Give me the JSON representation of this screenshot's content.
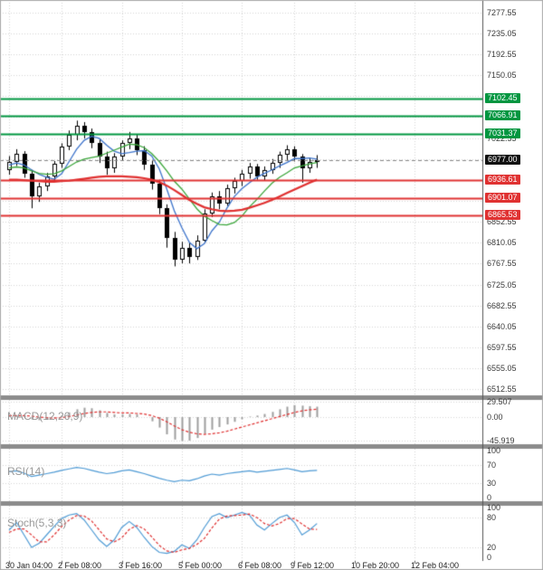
{
  "window": {
    "type": "trading-terminal-chart",
    "timeframe": "H4"
  },
  "colors": {
    "background": "#ffffff",
    "grid": "#d6d6d6",
    "separator": "#8c8c8c",
    "axis_text": "#3a3a3a",
    "candle_border": "#000000",
    "candle_up": "#ffffff",
    "candle_down": "#000000",
    "ma_fast": "#3d74cc",
    "ma_medium": "#3aa63a",
    "ma_slow": "#e03030",
    "resistance": "#009640",
    "support": "#e03232",
    "current_price_bg": "#101010",
    "macd_histogram": "#9e9e9e",
    "macd_signal": "#e03030",
    "rsi_line": "#4f9bd5",
    "stoch_k": "#4f9bd5",
    "stoch_d": "#e03030"
  },
  "time_axis": {
    "labels": [
      {
        "i": 0,
        "label": "30 Jan 04:00"
      },
      {
        "i": 7,
        "label": "2 Feb 08:00"
      },
      {
        "i": 15,
        "label": "3 Feb 16:00"
      },
      {
        "i": 23,
        "label": "5 Feb 00:00"
      },
      {
        "i": 31,
        "label": "6 Feb 08:00"
      },
      {
        "i": 38,
        "label": "9 Feb 12:00"
      },
      {
        "i": 46,
        "label": "10 Feb 20:00"
      },
      {
        "i": 54,
        "label": "12 Feb 04:00"
      }
    ]
  },
  "chart_data": [
    {
      "type": "candlestick",
      "name": "price-panel",
      "ylim": [
        6500,
        7303
      ],
      "grid_step": 42.5,
      "grid_base": 6512.55,
      "y_ticks": [
        7277.55,
        7235.05,
        7192.55,
        7150.05,
        7022.55,
        6852.55,
        6810.05,
        6767.55,
        6725.05,
        6682.55,
        6640.05,
        6597.55,
        6555.05,
        6512.55
      ],
      "levels": {
        "resistance": [
          7102.45,
          7066.91,
          7031.37
        ],
        "support": [
          6936.61,
          6901.07,
          6865.53
        ],
        "current_price": 6977.0
      },
      "ohlc": [
        [
          6958,
          6986,
          6948,
          6975
        ],
        [
          6975,
          7000,
          6966,
          6990
        ],
        [
          6990,
          6996,
          6942,
          6950
        ],
        [
          6950,
          6958,
          6880,
          6905
        ],
        [
          6905,
          6932,
          6893,
          6925
        ],
        [
          6925,
          6952,
          6915,
          6945
        ],
        [
          6945,
          6976,
          6936,
          6970
        ],
        [
          6970,
          7012,
          6962,
          7005
        ],
        [
          7005,
          7038,
          6998,
          7030
        ],
        [
          7030,
          7058,
          7018,
          7048
        ],
        [
          7048,
          7055,
          7022,
          7035
        ],
        [
          7035,
          7042,
          7002,
          7012
        ],
        [
          7012,
          7020,
          6972,
          6985
        ],
        [
          6985,
          6995,
          6948,
          6962
        ],
        [
          6962,
          6992,
          6952,
          6985
        ],
        [
          6985,
          7018,
          6976,
          7012
        ],
        [
          7012,
          7035,
          7000,
          7022
        ],
        [
          7022,
          7030,
          6988,
          6998
        ],
        [
          6998,
          7006,
          6958,
          6968
        ],
        [
          6968,
          6978,
          6918,
          6930
        ],
        [
          6930,
          6938,
          6868,
          6880
        ],
        [
          6880,
          6888,
          6800,
          6820
        ],
        [
          6820,
          6832,
          6762,
          6775
        ],
        [
          6775,
          6812,
          6768,
          6800
        ],
        [
          6800,
          6810,
          6768,
          6782
        ],
        [
          6782,
          6825,
          6775,
          6815
        ],
        [
          6815,
          6878,
          6810,
          6870
        ],
        [
          6870,
          6912,
          6862,
          6905
        ],
        [
          6905,
          6915,
          6878,
          6890
        ],
        [
          6890,
          6928,
          6885,
          6920
        ],
        [
          6920,
          6942,
          6910,
          6935
        ],
        [
          6935,
          6958,
          6925,
          6950
        ],
        [
          6950,
          6972,
          6940,
          6965
        ],
        [
          6965,
          6970,
          6938,
          6945
        ],
        [
          6945,
          6965,
          6936,
          6958
        ],
        [
          6958,
          6980,
          6950,
          6972
        ],
        [
          6972,
          6995,
          6962,
          6988
        ],
        [
          6988,
          7008,
          6978,
          7000
        ],
        [
          7000,
          7006,
          6975,
          6985
        ],
        [
          6985,
          6990,
          6932,
          6962
        ],
        [
          6962,
          6982,
          6952,
          6975
        ],
        [
          6975,
          6988,
          6962,
          6977
        ]
      ],
      "overlays": [
        {
          "name": "ma-fast",
          "values": [
            6968,
            6972,
            6968,
            6958,
            6949,
            6943,
            6939,
            6950,
            6975,
            7000,
            7018,
            7026,
            7022,
            7008,
            6996,
            6991,
            6993,
            6996,
            6997,
            6986,
            6960,
            6919,
            6875,
            6841,
            6811,
            6798,
            6808,
            6834,
            6852,
            6880,
            6904,
            6920,
            6932,
            6943,
            6951,
            6958,
            6966,
            6973,
            6981,
            6981,
            6982,
            6980
          ]
        },
        {
          "name": "ma-medium",
          "values": [
            6962,
            6964,
            6962,
            6956,
            6951,
            6949,
            6950,
            6956,
            6965,
            6974,
            6980,
            6983,
            6986,
            6992,
            6998,
            7004,
            7010,
            7009,
            7003,
            6991,
            6975,
            6956,
            6935,
            6919,
            6899,
            6879,
            6864,
            6855,
            6847,
            6846,
            6851,
            6864,
            6883,
            6898,
            6915,
            6931,
            6943,
            6952,
            6962,
            6966,
            6970,
            6973
          ]
        },
        {
          "name": "ma-slow",
          "values": [
            6938,
            6938,
            6937,
            6936,
            6935,
            6934,
            6934,
            6935,
            6936,
            6938,
            6940,
            6942,
            6944,
            6945,
            6945,
            6945,
            6944,
            6943,
            6941,
            6938,
            6933,
            6926,
            6917,
            6907,
            6897,
            6889,
            6882,
            6878,
            6875,
            6874,
            6875,
            6877,
            6881,
            6886,
            6891,
            6897,
            6904,
            6911,
            6918,
            6925,
            6932,
            6938
          ]
        }
      ]
    },
    {
      "type": "macd",
      "title": "MACD(12,26,9)",
      "ylim": [
        -52,
        33
      ],
      "y_ticks": [
        29.507,
        0,
        -45.919
      ],
      "y_tick_labels": [
        "29.507",
        "0.00",
        "-45.919"
      ],
      "histogram": [
        2,
        4,
        2,
        -4,
        -6,
        -5,
        -2,
        3,
        9,
        15,
        18,
        17,
        13,
        8,
        5,
        5,
        6,
        5,
        0,
        -8,
        -20,
        -33,
        -43,
        -46,
        -45,
        -40,
        -32,
        -24,
        -19,
        -14,
        -9,
        -4,
        1,
        3,
        6,
        10,
        15,
        20,
        23,
        22,
        21,
        20
      ],
      "signal": [
        3,
        3,
        3,
        2,
        0,
        -1,
        -2,
        -1,
        1,
        4,
        7,
        9,
        10,
        10,
        9,
        8,
        8,
        7,
        6,
        3,
        -2,
        -9,
        -17,
        -24,
        -29,
        -32,
        -33,
        -32,
        -30,
        -27,
        -23,
        -19,
        -15,
        -11,
        -7,
        -3,
        1,
        5,
        9,
        12,
        14,
        15
      ]
    },
    {
      "type": "line",
      "title": "RSI(14)",
      "ylim": [
        0,
        100
      ],
      "y_ticks": [
        100,
        70,
        30,
        0
      ],
      "levels": [
        70,
        30
      ],
      "values": [
        55,
        57,
        52,
        45,
        48,
        51,
        54,
        58,
        61,
        64,
        62,
        58,
        54,
        51,
        53,
        57,
        59,
        55,
        51,
        46,
        41,
        37,
        34,
        37,
        36,
        40,
        46,
        50,
        48,
        51,
        53,
        55,
        57,
        54,
        56,
        58,
        60,
        62,
        59,
        55,
        57,
        58
      ]
    },
    {
      "type": "line",
      "title": "Stoch(5,3,3)",
      "ylim": [
        0,
        100
      ],
      "y_ticks": [
        100,
        80,
        20,
        0
      ],
      "levels": [
        80,
        20
      ],
      "series": [
        {
          "name": "%K",
          "values": [
            55,
            70,
            45,
            20,
            28,
            45,
            62,
            78,
            85,
            88,
            75,
            55,
            35,
            22,
            35,
            60,
            72,
            60,
            40,
            22,
            10,
            8,
            12,
            25,
            18,
            35,
            60,
            82,
            88,
            80,
            85,
            90,
            85,
            65,
            55,
            68,
            80,
            85,
            70,
            45,
            55,
            68
          ]
        },
        {
          "name": "%D",
          "values": [
            50,
            57,
            57,
            45,
            31,
            31,
            45,
            62,
            75,
            84,
            83,
            73,
            55,
            37,
            31,
            39,
            56,
            64,
            57,
            41,
            24,
            13,
            10,
            15,
            18,
            26,
            38,
            59,
            77,
            83,
            84,
            85,
            87,
            80,
            68,
            63,
            68,
            78,
            78,
            67,
            57,
            56
          ]
        }
      ]
    }
  ]
}
